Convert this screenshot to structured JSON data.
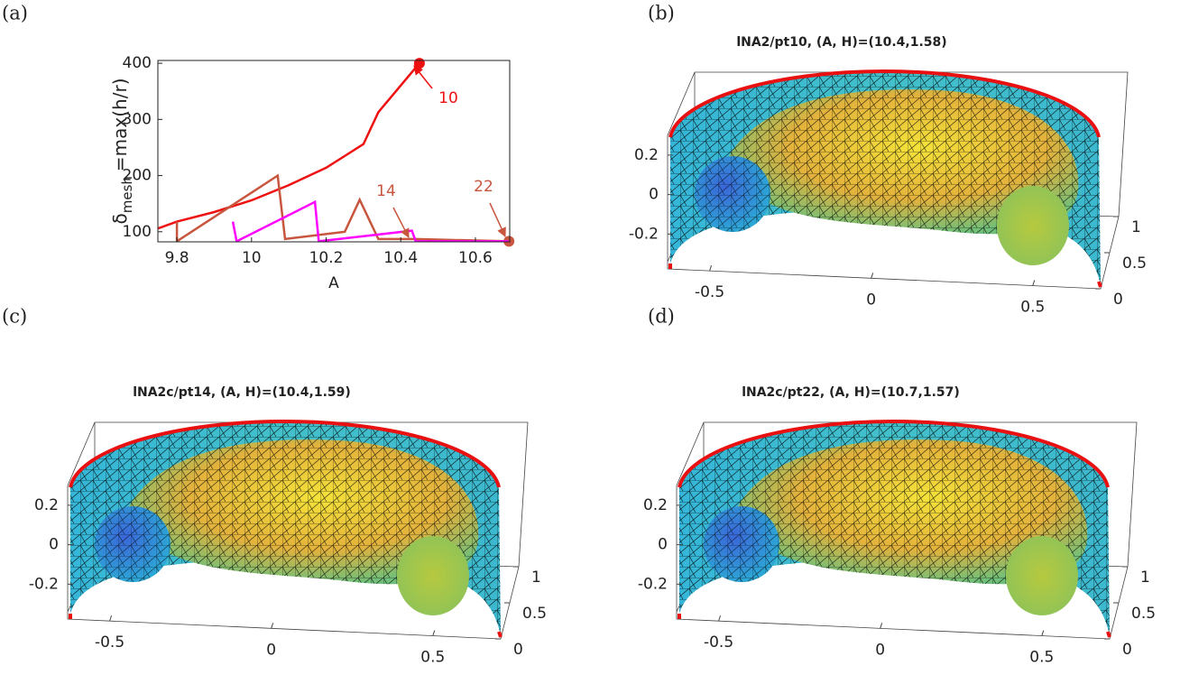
{
  "chart_data": [
    {
      "type": "line",
      "panel_label": "(a)",
      "xlabel": "A",
      "ylabel": {
        "symbol": "δ",
        "subscript": "mesh",
        "text": "=max(h/r)"
      },
      "xlim": [
        9.749,
        10.692
      ],
      "ylim": [
        82,
        405
      ],
      "xticks": [
        9.8,
        10,
        10.2,
        10.4,
        10.6
      ],
      "yticks": [
        100,
        200,
        300,
        400
      ],
      "series": [
        {
          "color": "#ee1111",
          "x": [
            9.75,
            9.8,
            9.9,
            10,
            10.1,
            10.2,
            10.3,
            10.34,
            10.45
          ],
          "values": [
            106,
            118,
            135,
            156,
            183,
            214,
            256,
            313,
            400
          ],
          "end_marker": true
        },
        {
          "color": "#c8553d",
          "x": [
            9.8,
            9.8,
            10.07,
            10.09,
            10.25,
            10.29,
            10.34,
            10.44,
            10.69
          ],
          "values": [
            118,
            83,
            200,
            87,
            100,
            157,
            87,
            87,
            83
          ],
          "end_marker": true
        },
        {
          "color": "#ff00ff",
          "x": [
            9.95,
            9.96,
            10.17,
            10.18,
            10.43,
            10.44,
            10.69
          ],
          "values": [
            118,
            83,
            153,
            83,
            102,
            83,
            83
          ],
          "end_marker": false
        }
      ],
      "annotations": [
        {
          "text": "10",
          "color": "#ee1111"
        },
        {
          "text": "14",
          "color": "#c8553d"
        },
        {
          "text": "22",
          "color": "#c8553d"
        }
      ]
    },
    {
      "type": "surface",
      "panel_label": "(b)",
      "title": "lNA2/pt10, (A, H)=(10.4,1.58)",
      "xlim": [
        -0.63,
        0.71
      ],
      "xticks": [
        -0.5,
        0,
        0.5
      ],
      "ylim": [
        0,
        1
      ],
      "yticks": [
        0,
        0.5,
        1
      ],
      "zlim": [
        -0.34,
        0.3
      ],
      "zticks": [
        -0.2,
        0,
        0.2
      ]
    },
    {
      "type": "surface",
      "panel_label": "(c)",
      "title": "lNA2c/pt14, (A, H)=(10.4,1.59)",
      "xlim": [
        -0.63,
        0.71
      ],
      "xticks": [
        -0.5,
        0,
        0.5
      ],
      "ylim": [
        0,
        1
      ],
      "yticks": [
        0,
        0.5,
        1
      ],
      "zlim": [
        -0.34,
        0.3
      ],
      "zticks": [
        -0.2,
        0,
        0.2
      ]
    },
    {
      "type": "surface",
      "panel_label": "(d)",
      "title": "lNA2c/pt22, (A, H)=(10.7,1.57)",
      "xlim": [
        -0.63,
        0.71
      ],
      "xticks": [
        -0.5,
        0,
        0.5
      ],
      "ylim": [
        0,
        1
      ],
      "yticks": [
        0,
        0.5,
        1
      ],
      "zlim": [
        -0.34,
        0.3
      ],
      "zticks": [
        -0.2,
        0,
        0.2
      ]
    }
  ]
}
